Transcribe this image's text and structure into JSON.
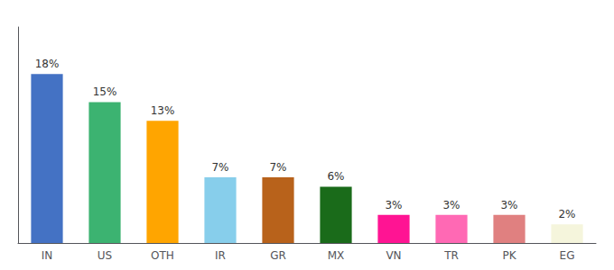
{
  "chart_data": {
    "type": "bar",
    "categories": [
      "IN",
      "US",
      "OTH",
      "IR",
      "GR",
      "MX",
      "VN",
      "TR",
      "PK",
      "EG"
    ],
    "values": [
      18,
      15,
      13,
      7,
      7,
      6,
      3,
      3,
      3,
      2
    ],
    "value_labels": [
      "18%",
      "15%",
      "13%",
      "7%",
      "7%",
      "6%",
      "3%",
      "3%",
      "3%",
      "2%"
    ],
    "colors": [
      "#4472C4",
      "#3CB371",
      "#FFA500",
      "#87CEEB",
      "#B8621B",
      "#1A6B1A",
      "#FF1493",
      "#FF69B4",
      "#E08080",
      "#F5F5DC"
    ],
    "data_labels": true,
    "ylim": [
      0,
      23
    ],
    "grid": false,
    "tick_labels": "x"
  }
}
